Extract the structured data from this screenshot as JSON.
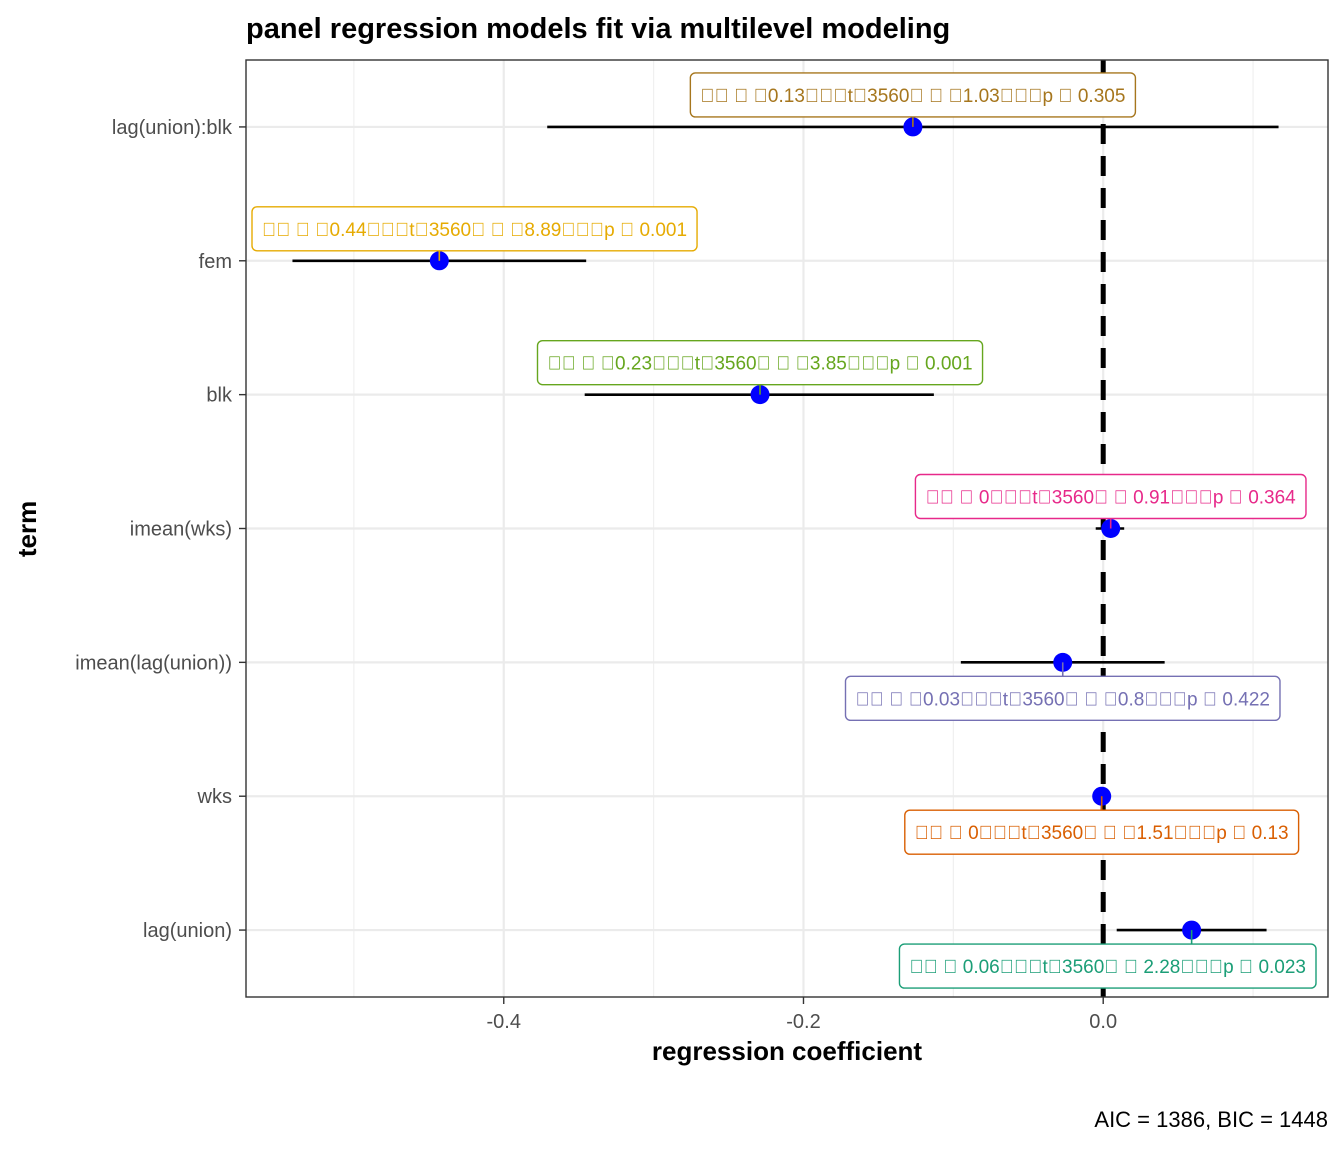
{
  "chart_data": {
    "type": "scatter",
    "subtype": "coefficient-plot",
    "title": "panel regression models fit via multilevel modeling",
    "xlabel": "regression coefficient",
    "ylabel": "term",
    "caption": "AIC = 1386, BIC = 1448",
    "xlim": [
      -0.572,
      0.15
    ],
    "x_ticks": [
      -0.4,
      -0.2,
      0.0
    ],
    "x_tick_labels": [
      "-0.4",
      "-0.2",
      "0.0"
    ],
    "x_minor_ticks": [
      -0.5,
      -0.3,
      -0.1,
      0.1
    ],
    "reference_line": 0,
    "grid": true,
    "point_color": "#0000ff",
    "terms": [
      {
        "term": "lag(union):blk",
        "estimate": -0.127,
        "conf_low": -0.371,
        "conf_high": 0.117,
        "label": "  0.13t3560  1.03p  0.305",
        "label_color": "#a6761d",
        "label_side": "above"
      },
      {
        "term": "fem",
        "estimate": -0.443,
        "conf_low": -0.541,
        "conf_high": -0.345,
        "label": "  0.44t3560  8.89p  0.001",
        "label_color": "#e6ab02",
        "label_side": "above"
      },
      {
        "term": "blk",
        "estimate": -0.229,
        "conf_low": -0.346,
        "conf_high": -0.113,
        "label": "  0.23t3560  3.85p  0.001",
        "label_color": "#66a61e",
        "label_side": "above"
      },
      {
        "term": "imean(wks)",
        "estimate": 0.005,
        "conf_low": -0.005,
        "conf_high": 0.014,
        "label": "  0t3560  0.91p  0.364",
        "label_color": "#e7298a",
        "label_side": "above"
      },
      {
        "term": "imean(lag(union))",
        "estimate": -0.027,
        "conf_low": -0.095,
        "conf_high": 0.041,
        "label": "  0.03t3560  0.8p  0.422",
        "label_color": "#7570b3",
        "label_side": "below"
      },
      {
        "term": "wks",
        "estimate": -0.001,
        "conf_low": -0.003,
        "conf_high": 0.0,
        "label": "  0t3560  1.51p  0.13",
        "label_color": "#d95f02",
        "label_side": "below"
      },
      {
        "term": "lag(union)",
        "estimate": 0.059,
        "conf_low": 0.009,
        "conf_high": 0.109,
        "label": "  0.06t3560  2.28p  0.023",
        "label_color": "#1b9e77",
        "label_side": "below"
      }
    ]
  }
}
